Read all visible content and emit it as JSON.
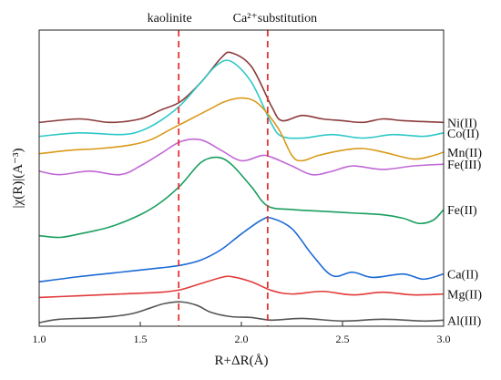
{
  "chart_data": {
    "type": "line",
    "xlabel": "R+ΔR(Å)",
    "ylabel": "|χ(R)|(A⁻³)",
    "xlim": [
      1.0,
      3.0
    ],
    "xticks": [
      1.0,
      1.5,
      2.0,
      2.5,
      3.0
    ],
    "grid": false,
    "legend": "labels at right end of each curve",
    "annotations": [
      {
        "label": "kaolinite",
        "x": 1.69,
        "color": "#e53333",
        "style": "dashed"
      },
      {
        "label": "Ca²⁺substitution",
        "x": 2.13,
        "color": "#e53333",
        "style": "dashed"
      }
    ],
    "series": [
      {
        "name": "Ni(II)",
        "color": "#8b3a3a",
        "x": [
          1.0,
          1.2,
          1.35,
          1.5,
          1.6,
          1.7,
          1.8,
          1.9,
          1.95,
          2.05,
          2.15,
          2.2,
          2.3,
          2.4,
          2.5,
          2.6,
          2.7,
          2.8,
          3.0
        ],
        "y": [
          10.2,
          10.4,
          10.2,
          10.4,
          10.9,
          11.4,
          12.5,
          13.9,
          14.2,
          13.4,
          11.1,
          10.3,
          10.6,
          10.4,
          10.3,
          10.2,
          10.4,
          10.3,
          10.2
        ]
      },
      {
        "name": "Co(II)",
        "color": "#2ec8c8",
        "x": [
          1.0,
          1.2,
          1.4,
          1.5,
          1.6,
          1.7,
          1.8,
          1.88,
          1.95,
          2.05,
          2.15,
          2.2,
          2.3,
          2.45,
          2.6,
          2.75,
          2.9,
          3.0
        ],
        "y": [
          9.4,
          9.6,
          9.5,
          9.7,
          10.3,
          11.2,
          12.5,
          13.5,
          13.7,
          12.5,
          10.1,
          9.4,
          9.3,
          9.5,
          9.3,
          9.5,
          9.4,
          9.6
        ]
      },
      {
        "name": "Mn(II)",
        "color": "#d99a1a",
        "x": [
          1.0,
          1.15,
          1.3,
          1.45,
          1.55,
          1.65,
          1.75,
          1.85,
          1.92,
          2.0,
          2.08,
          2.18,
          2.25,
          2.3,
          2.38,
          2.5,
          2.6,
          2.7,
          2.85,
          2.95,
          3.0
        ],
        "y": [
          8.4,
          8.6,
          8.7,
          8.9,
          9.2,
          9.8,
          10.4,
          11.0,
          11.4,
          11.6,
          11.3,
          9.9,
          8.3,
          8.0,
          8.3,
          8.6,
          8.7,
          8.5,
          8.1,
          8.3,
          8.5
        ]
      },
      {
        "name": "Fe(III)",
        "color": "#c168d6",
        "x": [
          1.0,
          1.1,
          1.25,
          1.4,
          1.5,
          1.6,
          1.7,
          1.8,
          1.9,
          2.0,
          2.1,
          2.15,
          2.25,
          2.35,
          2.45,
          2.55,
          2.7,
          2.85,
          3.0
        ],
        "y": [
          7.4,
          7.2,
          7.4,
          7.2,
          7.7,
          8.4,
          9.1,
          9.2,
          8.6,
          8.0,
          8.3,
          8.2,
          7.7,
          7.2,
          7.4,
          7.7,
          7.5,
          7.7,
          7.8
        ]
      },
      {
        "name": "Fe(II)",
        "color": "#1a9e60",
        "x": [
          1.0,
          1.1,
          1.2,
          1.35,
          1.5,
          1.6,
          1.7,
          1.8,
          1.88,
          1.95,
          2.05,
          2.13,
          2.25,
          2.4,
          2.55,
          2.7,
          2.8,
          2.88,
          2.95,
          3.0
        ],
        "y": [
          3.7,
          3.6,
          3.8,
          4.2,
          4.9,
          5.6,
          6.6,
          7.9,
          8.2,
          7.8,
          6.5,
          5.4,
          5.2,
          5.1,
          5.0,
          4.9,
          4.7,
          4.4,
          4.6,
          5.2
        ]
      },
      {
        "name": "Ca(II)",
        "color": "#1b6ad6",
        "x": [
          1.0,
          1.2,
          1.4,
          1.6,
          1.7,
          1.8,
          1.9,
          2.0,
          2.1,
          2.15,
          2.25,
          2.35,
          2.45,
          2.55,
          2.65,
          2.8,
          2.9,
          3.0
        ],
        "y": [
          1.05,
          1.35,
          1.6,
          1.85,
          2.0,
          2.3,
          2.9,
          3.8,
          4.6,
          4.7,
          4.1,
          2.6,
          1.4,
          1.6,
          1.3,
          1.5,
          1.2,
          1.5
        ]
      },
      {
        "name": "Mg(II)",
        "color": "#e23a3a",
        "x": [
          1.0,
          1.2,
          1.4,
          1.6,
          1.7,
          1.8,
          1.9,
          1.95,
          2.05,
          2.15,
          2.25,
          2.4,
          2.55,
          2.7,
          2.85,
          3.0
        ],
        "y": [
          0.15,
          0.25,
          0.35,
          0.45,
          0.6,
          0.95,
          1.3,
          1.35,
          1.05,
          0.55,
          0.35,
          0.5,
          0.3,
          0.45,
          0.3,
          0.35
        ]
      },
      {
        "name": "Al(III)",
        "color": "#555555",
        "x": [
          1.0,
          1.1,
          1.3,
          1.45,
          1.55,
          1.62,
          1.7,
          1.78,
          1.85,
          1.95,
          2.05,
          2.15,
          2.3,
          2.5,
          2.7,
          2.9,
          3.0
        ],
        "y": [
          -1.3,
          -1.1,
          -1.0,
          -0.8,
          -0.45,
          -0.2,
          -0.1,
          -0.3,
          -0.7,
          -0.95,
          -1.0,
          -1.15,
          -1.05,
          -1.2,
          -1.1,
          -1.2,
          -1.15
        ]
      }
    ]
  }
}
